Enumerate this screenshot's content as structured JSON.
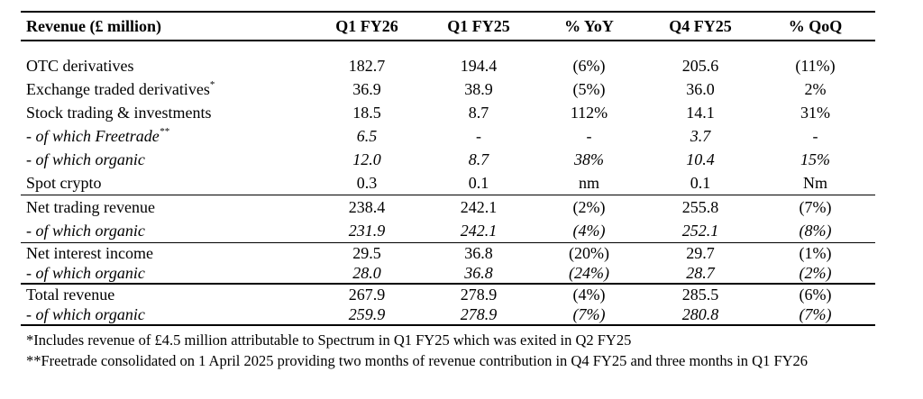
{
  "table": {
    "headers": [
      "Revenue (£ million)",
      "Q1 FY26",
      "Q1 FY25",
      "% YoY",
      "Q4 FY25",
      "% QoQ"
    ],
    "rows": [
      {
        "label": "OTC derivatives",
        "sup": "",
        "italic": false,
        "values": [
          "182.7",
          "194.4",
          "(6%)",
          "205.6",
          "(11%)"
        ]
      },
      {
        "label": "Exchange traded derivatives",
        "sup": "*",
        "italic": false,
        "values": [
          "36.9",
          "38.9",
          "(5%)",
          "36.0",
          "2%"
        ]
      },
      {
        "label": "Stock trading & investments",
        "sup": "",
        "italic": false,
        "values": [
          "18.5",
          "8.7",
          "112%",
          "14.1",
          "31%"
        ]
      },
      {
        "label": "- of which Freetrade",
        "sup": "**",
        "italic": true,
        "values": [
          "6.5",
          "-",
          "-",
          "3.7",
          "-"
        ]
      },
      {
        "label": "- of which organic",
        "sup": "",
        "italic": true,
        "values": [
          "12.0",
          "8.7",
          "38%",
          "10.4",
          "15%"
        ]
      },
      {
        "label": "Spot crypto",
        "sup": "",
        "italic": false,
        "values": [
          "0.3",
          "0.1",
          "nm",
          "0.1",
          "Nm"
        ]
      },
      {
        "label": "Net trading revenue",
        "sup": "",
        "italic": false,
        "values": [
          "238.4",
          "242.1",
          "(2%)",
          "255.8",
          "(7%)"
        ]
      },
      {
        "label": "- of which organic",
        "sup": "",
        "italic": true,
        "values": [
          "231.9",
          "242.1",
          "(4%)",
          "252.1",
          "(8%)"
        ]
      },
      {
        "label": "Net interest income",
        "sup": "",
        "italic": false,
        "values": [
          "29.5",
          "36.8",
          "(20%)",
          "29.7",
          "(1%)"
        ]
      },
      {
        "label": "- of which organic",
        "sup": "",
        "italic": true,
        "values": [
          "28.0",
          "36.8",
          "(24%)",
          "28.7",
          "(2%)"
        ]
      },
      {
        "label": "Total revenue",
        "sup": "",
        "italic": false,
        "values": [
          "267.9",
          "278.9",
          "(4%)",
          "285.5",
          "(6%)"
        ]
      },
      {
        "label": "- of which organic",
        "sup": "",
        "italic": true,
        "values": [
          "259.9",
          "278.9",
          "(7%)",
          "280.8",
          "(7%)"
        ]
      }
    ]
  },
  "footnotes": [
    "*Includes revenue of £4.5 million attributable to Spectrum in Q1 FY25 which was exited in Q2 FY25",
    "**Freetrade consolidated on 1 April 2025 providing two months of revenue contribution in Q4 FY25 and three months in Q1 FY26"
  ]
}
